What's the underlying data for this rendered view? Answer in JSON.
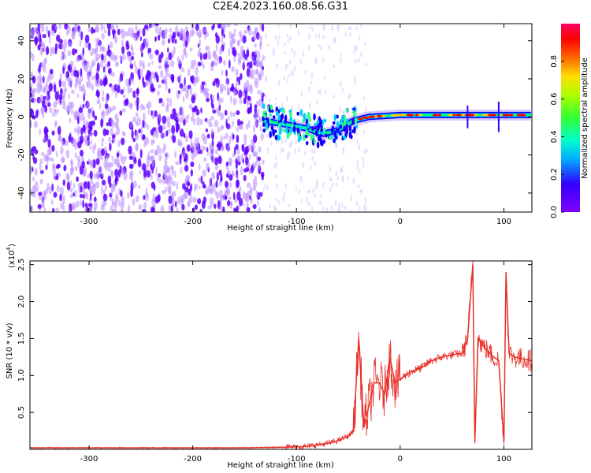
{
  "title": "C2E4.2023.160.08.56.G31",
  "chart_data": [
    {
      "type": "heatmap",
      "xlabel": "Height of straight line (km)",
      "ylabel": "Frequency (Hz)",
      "xlim": [
        -357,
        127
      ],
      "ylim": [
        -50,
        49
      ],
      "xticks": [
        -300,
        -200,
        -100,
        0,
        100
      ],
      "yticks": [
        -40,
        -20,
        0,
        20,
        40
      ],
      "colorbar": {
        "label": "Normalized spectral amplitude",
        "range": [
          0.0,
          1.0
        ],
        "ticks": [
          "0.0",
          "0.2",
          "0.4",
          "0.6",
          "0.8"
        ]
      },
      "signal_ridge": [
        {
          "x": -132,
          "y": -2
        },
        {
          "x": -110,
          "y": -4
        },
        {
          "x": -90,
          "y": -6
        },
        {
          "x": -75,
          "y": -9
        },
        {
          "x": -60,
          "y": -7
        },
        {
          "x": -45,
          "y": -2
        },
        {
          "x": -30,
          "y": 0
        },
        {
          "x": 0,
          "y": 1
        },
        {
          "x": 50,
          "y": 1
        },
        {
          "x": 100,
          "y": 1
        },
        {
          "x": 127,
          "y": 1
        }
      ],
      "colors": {
        "noise": "#6a00ff",
        "ridge_edge": "#0000ff",
        "ridge_mid": "#00ff80",
        "ridge_peak": "#ff0000"
      }
    },
    {
      "type": "line",
      "xlabel": "Height of straight line (km)",
      "ylabel": "SNR (10 * v/v)",
      "scale_label": "(x10",
      "scale_exp": "4",
      "xlim": [
        -357,
        127
      ],
      "ylim": [
        0,
        2.55
      ],
      "xticks": [
        -300,
        -200,
        -100,
        0,
        100
      ],
      "yticks": [
        "0.5",
        "1.0",
        "1.5",
        "2.0",
        "2.5"
      ],
      "color": "#e8302a",
      "series": [
        {
          "x": [
            -357,
            -300,
            -200,
            -150,
            -110,
            -90,
            -70,
            -60,
            -50,
            -45,
            -40,
            -35,
            -30,
            -25,
            -20,
            -15,
            -10,
            -5,
            0,
            10,
            20,
            30,
            40,
            50,
            60,
            65,
            70,
            72,
            75,
            80,
            90,
            95,
            100,
            102,
            105,
            110,
            120,
            127
          ],
          "y": [
            0.02,
            0.02,
            0.02,
            0.02,
            0.03,
            0.04,
            0.08,
            0.12,
            0.18,
            0.25,
            1.5,
            0.3,
            0.6,
            0.9,
            0.9,
            0.75,
            1.25,
            0.9,
            0.95,
            1.05,
            1.1,
            1.2,
            1.25,
            1.28,
            1.3,
            1.5,
            2.5,
            0.1,
            1.5,
            1.4,
            1.25,
            1.2,
            0.1,
            2.4,
            1.3,
            1.25,
            1.22,
            1.2
          ]
        }
      ]
    }
  ]
}
